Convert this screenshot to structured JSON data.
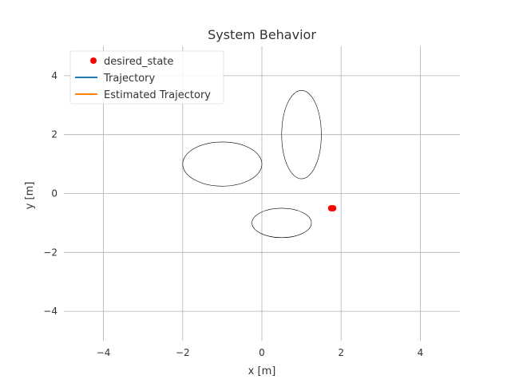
{
  "chart_data": {
    "type": "scatter",
    "title": "System Behavior",
    "xlabel": "x [m]",
    "ylabel": "y [m]",
    "xlim": [
      -5,
      5
    ],
    "ylim": [
      -5,
      5
    ],
    "xticks": [
      -4,
      -2,
      0,
      2,
      4
    ],
    "yticks": [
      -4,
      -2,
      0,
      2,
      4
    ],
    "xtick_labels": [
      "−4",
      "−2",
      "0",
      "2",
      "4"
    ],
    "ytick_labels": [
      "−4",
      "−2",
      "0",
      "2",
      "4"
    ],
    "grid": true,
    "legend_position": "top-left",
    "legend": [
      {
        "label": "desired_state",
        "kind": "marker",
        "color": "#ff0000"
      },
      {
        "label": "Trajectory",
        "kind": "line",
        "color": "#1f77b4"
      },
      {
        "label": "Estimated Trajectory",
        "kind": "line",
        "color": "#ff7f0e"
      }
    ],
    "series": [
      {
        "name": "desired_state",
        "kind": "scatter",
        "color": "#ff0000",
        "points": [
          {
            "x": 1.75,
            "y": -0.5
          },
          {
            "x": 1.8,
            "y": -0.5
          }
        ]
      }
    ],
    "ellipses": [
      {
        "cx": -1.0,
        "cy": 1.0,
        "rx": 1.0,
        "ry": 0.75,
        "color": "#000000"
      },
      {
        "cx": 1.0,
        "cy": 2.0,
        "rx": 0.5,
        "ry": 1.5,
        "color": "#000000"
      },
      {
        "cx": 0.5,
        "cy": -1.0,
        "rx": 0.75,
        "ry": 0.5,
        "color": "#000000"
      }
    ]
  }
}
